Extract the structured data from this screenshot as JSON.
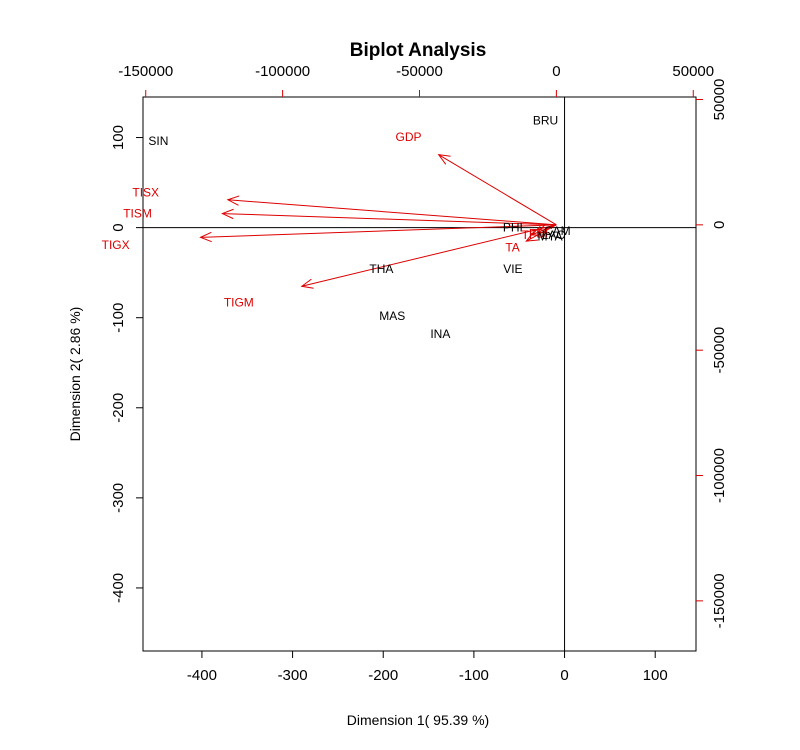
{
  "chart_data": {
    "type": "scatter",
    "subtype": "biplot",
    "title": "Biplot Analysis",
    "xlabel": "Dimension 1( 95.39 %)",
    "ylabel": "Dimension 2( 2.86 %)",
    "colors": {
      "observations": "#000000",
      "variables": "#dd0000"
    },
    "primary_axes": {
      "xlim": [
        -465,
        145
      ],
      "ylim": [
        -470,
        145
      ],
      "xticks": [
        -400,
        -300,
        -200,
        -100,
        0,
        100
      ],
      "yticks": [
        -400,
        -300,
        -200,
        -100,
        0,
        100
      ]
    },
    "secondary_axes": {
      "xlim": [
        -151000,
        51000
      ],
      "ylim": [
        -170000,
        51000
      ],
      "xticks": [
        -150000,
        -100000,
        -50000,
        0,
        50000
      ],
      "yticks": [
        -150000,
        -100000,
        -50000,
        0,
        50000
      ]
    },
    "observations": [
      {
        "label": "BRU",
        "x": -21,
        "y": 119
      },
      {
        "label": "SIN",
        "x": -448,
        "y": 96
      },
      {
        "label": "THA",
        "x": -202,
        "y": -46
      },
      {
        "label": "VIE",
        "x": -57,
        "y": -46
      },
      {
        "label": "MAS",
        "x": -190,
        "y": -98
      },
      {
        "label": "INA",
        "x": -137,
        "y": -118
      },
      {
        "label": "PHI",
        "x": -57,
        "y": 0
      },
      {
        "label": "CAM",
        "x": -8,
        "y": -4
      },
      {
        "label": "LAO",
        "x": -12,
        "y": -8
      },
      {
        "label": "MYA",
        "x": -16,
        "y": -10
      }
    ],
    "variables": [
      {
        "label": "GDP",
        "x": -43000,
        "y": 28000,
        "label_x": -54000,
        "label_y": 35000
      },
      {
        "label": "TISX",
        "x": -120000,
        "y": 10000,
        "label_x": -150000,
        "label_y": 13000
      },
      {
        "label": "TISM",
        "x": -122000,
        "y": 4500,
        "label_x": -153000,
        "label_y": 4500
      },
      {
        "label": "TIGX",
        "x": -130000,
        "y": -5000,
        "label_x": -161000,
        "label_y": -8000
      },
      {
        "label": "TIGM",
        "x": -93000,
        "y": -24500,
        "label_x": -116000,
        "label_y": -31000
      },
      {
        "label": "TA",
        "x": -11000,
        "y": -6500,
        "label_x": -16000,
        "label_y": -9000
      },
      {
        "label": "TF",
        "x": -9000,
        "y": -4000,
        "label_x": -10000,
        "label_y": -4000
      },
      {
        "label": "FDI",
        "x": -7000,
        "y": -3000,
        "label_x": -6500,
        "label_y": -3500
      }
    ]
  }
}
